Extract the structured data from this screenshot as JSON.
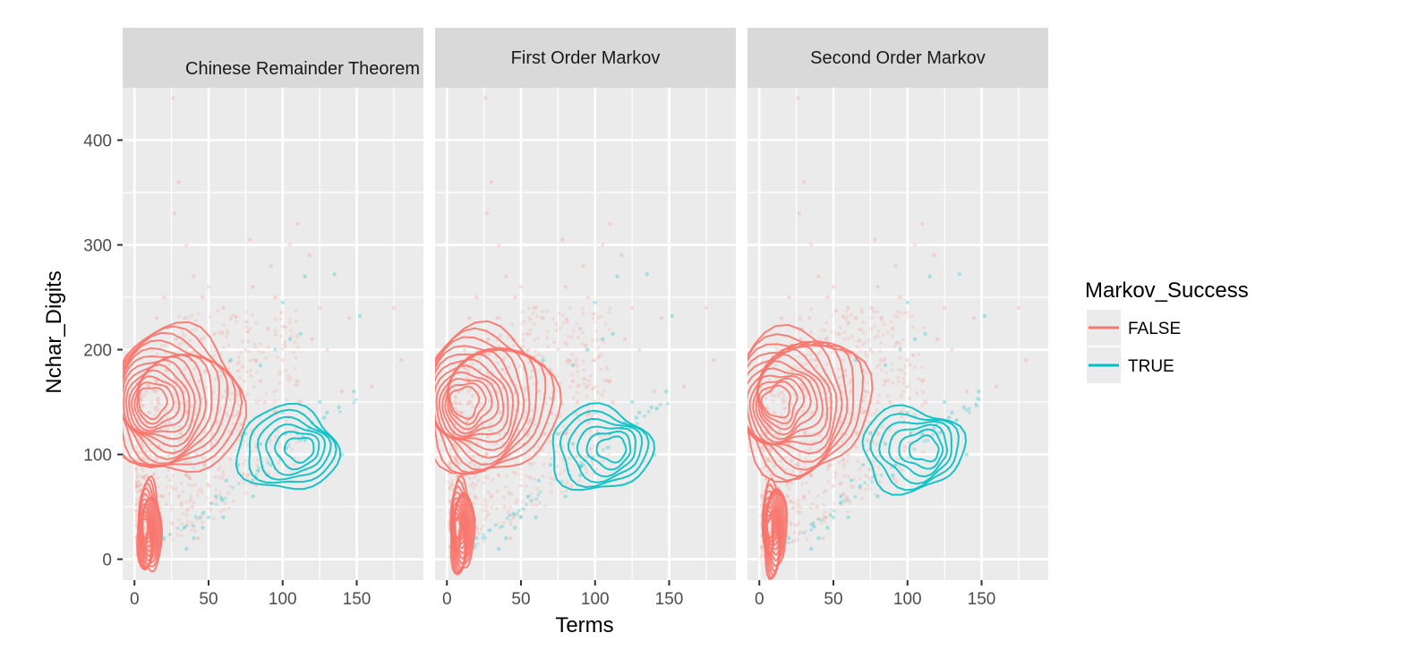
{
  "chart_data": {
    "type": "scatter",
    "layout": "faceted",
    "facets": [
      {
        "label": "Chinese Remainder Theorem"
      },
      {
        "label": "First Order Markov"
      },
      {
        "label": "Second Order Markov"
      }
    ],
    "xlabel": "Terms",
    "ylabel": "Nchar_Digits",
    "xlim": [
      -8,
      195
    ],
    "ylim": [
      -20,
      450
    ],
    "x_ticks": [
      0,
      50,
      100,
      150
    ],
    "y_ticks": [
      0,
      100,
      200,
      300,
      400
    ],
    "grid": true,
    "legend": {
      "title": "Markov_Success",
      "position": "right",
      "entries": [
        {
          "label": "FALSE",
          "color": "#F8766D"
        },
        {
          "label": "TRUE",
          "color": "#00BFC4"
        }
      ]
    },
    "series": [
      {
        "name": "FALSE",
        "color": "#F8766D",
        "points": [
          [
            26,
            440
          ],
          [
            30,
            360
          ],
          [
            27,
            330
          ],
          [
            35,
            300
          ],
          [
            40,
            270
          ],
          [
            20,
            250
          ],
          [
            50,
            260
          ],
          [
            60,
            240
          ],
          [
            45,
            210
          ],
          [
            55,
            200
          ],
          [
            70,
            180
          ],
          [
            65,
            230
          ],
          [
            80,
            260
          ],
          [
            95,
            250
          ],
          [
            110,
            320
          ],
          [
            118,
            290
          ],
          [
            90,
            220
          ],
          [
            75,
            200
          ],
          [
            100,
            190
          ],
          [
            85,
            170
          ],
          [
            120,
            210
          ],
          [
            180,
            190
          ],
          [
            15,
            170
          ],
          [
            10,
            140
          ],
          [
            5,
            120
          ],
          [
            8,
            80
          ],
          [
            12,
            60
          ],
          [
            3,
            30
          ],
          [
            20,
            110
          ],
          [
            25,
            90
          ],
          [
            30,
            60
          ],
          [
            18,
            40
          ],
          [
            40,
            120
          ],
          [
            35,
            80
          ],
          [
            60,
            100
          ],
          [
            50,
            70
          ],
          [
            45,
            40
          ],
          [
            55,
            130
          ],
          [
            70,
            140
          ],
          [
            80,
            120
          ],
          [
            78,
            305
          ],
          [
            105,
            300
          ],
          [
            140,
            160
          ],
          [
            160,
            165
          ],
          [
            12,
            200
          ],
          [
            22,
            180
          ],
          [
            33,
            160
          ],
          [
            48,
            150
          ],
          [
            62,
            160
          ],
          [
            38,
            190
          ],
          [
            28,
            210
          ],
          [
            16,
            150
          ],
          [
            6,
            95
          ],
          [
            9,
            50
          ],
          [
            14,
            20
          ],
          [
            24,
            130
          ],
          [
            42,
            100
          ],
          [
            52,
            110
          ],
          [
            66,
            120
          ],
          [
            36,
            140
          ],
          [
            44,
            170
          ],
          [
            58,
            180
          ],
          [
            72,
            160
          ],
          [
            88,
            150
          ],
          [
            96,
            140
          ],
          [
            110,
            170
          ],
          [
            125,
            240
          ],
          [
            15,
            230
          ],
          [
            8,
            160
          ],
          [
            34,
            230
          ],
          [
            46,
            250
          ],
          [
            54,
            215
          ],
          [
            82,
            190
          ],
          [
            92,
            280
          ],
          [
            112,
            150
          ],
          [
            130,
            200
          ],
          [
            145,
            230
          ],
          [
            175,
            240
          ],
          [
            19,
            60
          ],
          [
            27,
            100
          ],
          [
            31,
            120
          ],
          [
            39,
            50
          ],
          [
            43,
            20
          ],
          [
            47,
            90
          ]
        ],
        "contour_regions": [
          {
            "center": [
              28,
              150
            ],
            "x_range": [
              5,
              95
            ],
            "y_range": [
              90,
              230
            ]
          },
          {
            "center": [
              10,
              30
            ],
            "x_range": [
              2,
              18
            ],
            "y_range": [
              2,
              90
            ]
          }
        ]
      },
      {
        "name": "TRUE",
        "color": "#00BFC4",
        "points": [
          [
            100,
            245
          ],
          [
            115,
            270
          ],
          [
            135,
            272
          ],
          [
            152,
            232
          ],
          [
            148,
            160
          ],
          [
            130,
            140
          ],
          [
            120,
            130
          ],
          [
            125,
            150
          ],
          [
            110,
            120
          ],
          [
            90,
            80
          ],
          [
            80,
            60
          ],
          [
            60,
            40
          ],
          [
            40,
            20
          ],
          [
            70,
            90
          ],
          [
            85,
            110
          ],
          [
            95,
            200
          ],
          [
            65,
            190
          ],
          [
            105,
            210
          ],
          [
            140,
            100
          ],
          [
            100,
            140
          ],
          [
            75,
            120
          ],
          [
            50,
            40
          ],
          [
            55,
            60
          ],
          [
            118,
            125
          ],
          [
            128,
            135
          ],
          [
            20,
            20
          ],
          [
            35,
            10
          ],
          [
            85,
            185
          ],
          [
            112,
            215
          ],
          [
            92,
            90
          ],
          [
            62,
            75
          ],
          [
            46,
            30
          ],
          [
            138,
            145
          ],
          [
            102,
            120
          ]
        ],
        "contour_regions": [
          {
            "center": [
              103,
              105
            ],
            "x_range": [
              50,
              118
            ],
            "y_range": [
              75,
              155
            ]
          }
        ]
      }
    ]
  }
}
